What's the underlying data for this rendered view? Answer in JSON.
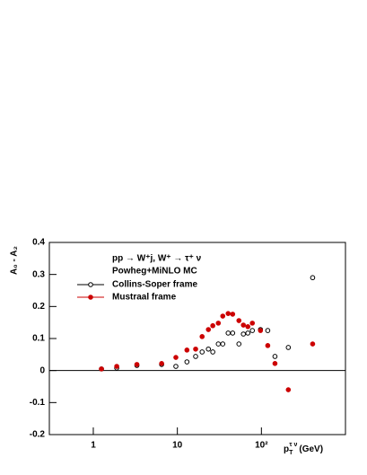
{
  "chart_data": {
    "type": "scatter",
    "log_x": true,
    "y_label": "A₀ - A₂",
    "x_label": "p",
    "x_label_sub": "T",
    "x_label_sup": "τ ν",
    "x_label_unit": "(GeV)",
    "legend_title": "pp → W⁺j, W⁺ → τ⁺ ν",
    "legend_subtitle": "Powheg+MiNLO MC",
    "x": [
      1.25,
      1.9,
      3.3,
      6.5,
      9.6,
      13,
      16.5,
      19.7,
      23.4,
      26.4,
      30.7,
      34.7,
      40.2,
      45.5,
      54,
      61,
      69,
      78,
      97.5,
      119,
      145,
      209,
      407
    ],
    "series": [
      {
        "name": "Collins-Soper frame",
        "color": "#000000",
        "marker": "open",
        "values": [
          0.005,
          0.008,
          0.016,
          0.019,
          0.013,
          0.027,
          0.044,
          0.058,
          0.067,
          0.058,
          0.083,
          0.083,
          0.117,
          0.117,
          0.083,
          0.114,
          0.117,
          0.125,
          0.128,
          0.125,
          0.044,
          0.072,
          0.29
        ]
      },
      {
        "name": "Mustraal frame",
        "color": "#cc0000",
        "marker": "filled",
        "values": [
          0.005,
          0.013,
          0.019,
          0.022,
          0.041,
          0.064,
          0.067,
          0.106,
          0.128,
          0.14,
          0.148,
          0.17,
          0.178,
          0.176,
          0.156,
          0.142,
          0.137,
          0.148,
          0.125,
          0.078,
          0.022,
          -0.06,
          0.083
        ]
      }
    ],
    "xlim": [
      0.3,
      1000
    ],
    "xticks": [
      1,
      10,
      {
        "value": 100,
        "label": "10²"
      }
    ],
    "ylim": [
      -0.2,
      0.4
    ],
    "yticks": [
      -0.2,
      -0.1,
      0,
      0.1,
      0.2,
      0.3,
      0.4
    ],
    "zero_line": true
  }
}
